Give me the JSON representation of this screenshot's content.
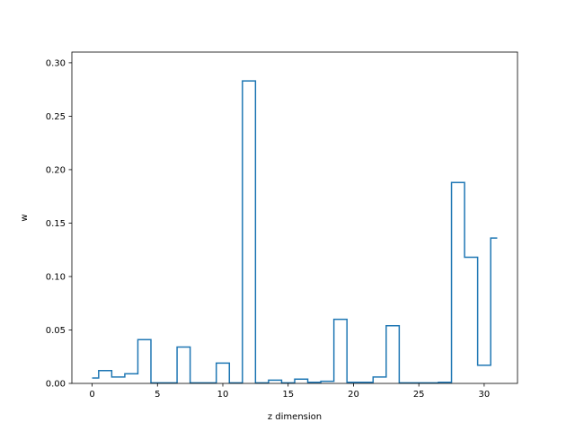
{
  "chart_data": {
    "type": "line",
    "drawstyle": "steps-mid",
    "title": "",
    "xlabel": "z dimension",
    "ylabel": "w",
    "xlim": [
      -1.55,
      32.55
    ],
    "ylim": [
      0,
      0.31
    ],
    "xticks": [
      0,
      5,
      10,
      15,
      20,
      25,
      30
    ],
    "xtick_labels": [
      "0",
      "5",
      "10",
      "15",
      "20",
      "25",
      "30"
    ],
    "yticks": [
      0.0,
      0.05,
      0.1,
      0.15,
      0.2,
      0.25,
      0.3
    ],
    "ytick_labels": [
      "0.00",
      "0.05",
      "0.10",
      "0.15",
      "0.20",
      "0.25",
      "0.30"
    ],
    "grid": false,
    "series": [
      {
        "color": "#1f77b4",
        "x": [
          0,
          1,
          2,
          3,
          4,
          5,
          6,
          7,
          8,
          9,
          10,
          11,
          12,
          13,
          14,
          15,
          16,
          17,
          18,
          19,
          20,
          21,
          22,
          23,
          24,
          25,
          26,
          27,
          28,
          29,
          30,
          31
        ],
        "y": [
          0.005,
          0.012,
          0.006,
          0.009,
          0.041,
          0.0005,
          0.0005,
          0.034,
          0.0005,
          0.0005,
          0.019,
          0.0005,
          0.283,
          0.0005,
          0.003,
          0.0005,
          0.004,
          0.001,
          0.002,
          0.06,
          0.001,
          0.001,
          0.006,
          0.054,
          0.0005,
          0.0005,
          0.0005,
          0.001,
          0.188,
          0.118,
          0.017,
          0.136
        ]
      }
    ]
  }
}
